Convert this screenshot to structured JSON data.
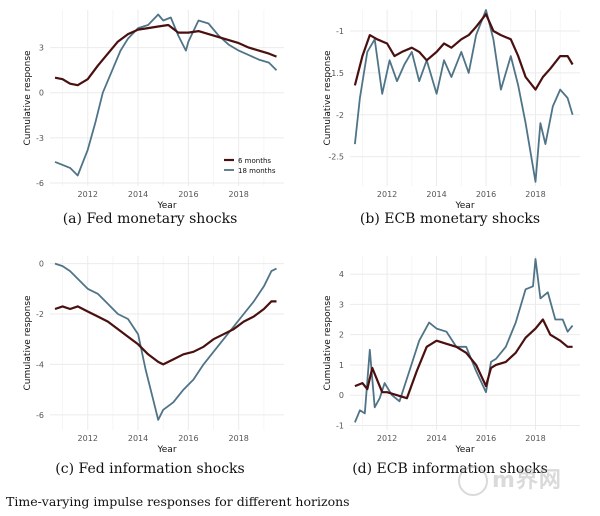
{
  "figure_caption": "Time-varying impulse responses for different horizons",
  "watermark": "m界网",
  "colors": {
    "six_months": "#4a1010",
    "eighteen_months": "#4f7488",
    "grid": "#ebebeb"
  },
  "legend": {
    "six": "6 months",
    "eighteen": "18 months"
  },
  "chart_data": [
    {
      "id": "fed-monetary",
      "type": "line",
      "caption": "(a) Fed monetary shocks",
      "xlabel": "Year",
      "ylabel": "Cumulative response",
      "xlim": [
        2010.5,
        2019.8
      ],
      "ylim": [
        -6.2,
        5.5
      ],
      "xticks": [
        2012,
        2014,
        2016,
        2018
      ],
      "yticks": [
        -6,
        -3,
        0,
        3
      ],
      "show_legend": true,
      "series": [
        {
          "name": "6 months",
          "x": [
            2010.7,
            2011.0,
            2011.3,
            2011.6,
            2012.0,
            2012.4,
            2012.8,
            2013.2,
            2013.6,
            2014.0,
            2014.4,
            2014.8,
            2015.2,
            2015.6,
            2016.0,
            2016.4,
            2016.8,
            2017.2,
            2017.6,
            2018.0,
            2018.4,
            2018.8,
            2019.2,
            2019.5
          ],
          "values": [
            1.0,
            0.9,
            0.6,
            0.5,
            0.9,
            1.8,
            2.6,
            3.4,
            3.9,
            4.2,
            4.3,
            4.4,
            4.5,
            4.0,
            4.0,
            4.1,
            3.9,
            3.7,
            3.5,
            3.3,
            3.0,
            2.8,
            2.6,
            2.4
          ]
        },
        {
          "name": "18 months",
          "x": [
            2010.7,
            2011.0,
            2011.3,
            2011.6,
            2012.0,
            2012.3,
            2012.6,
            2013.0,
            2013.3,
            2013.6,
            2014.0,
            2014.4,
            2014.8,
            2015.0,
            2015.3,
            2015.6,
            2015.9,
            2016.0,
            2016.4,
            2016.8,
            2017.2,
            2017.6,
            2018.0,
            2018.4,
            2018.8,
            2019.2,
            2019.5
          ],
          "values": [
            -4.6,
            -4.8,
            -5.0,
            -5.5,
            -3.8,
            -2.0,
            0.0,
            1.6,
            2.8,
            3.6,
            4.3,
            4.5,
            5.2,
            4.8,
            5.0,
            3.8,
            2.8,
            3.4,
            4.8,
            4.6,
            3.8,
            3.2,
            2.8,
            2.5,
            2.2,
            2.0,
            1.5
          ]
        }
      ]
    },
    {
      "id": "ecb-monetary",
      "type": "line",
      "caption": "(b) ECB monetary shocks",
      "xlabel": "Year",
      "ylabel": "Cumulative response",
      "xlim": [
        2010.5,
        2019.8
      ],
      "ylim": [
        -2.85,
        -0.75
      ],
      "xticks": [
        2012,
        2014,
        2016,
        2018
      ],
      "yticks": [
        -2.5,
        -2.0,
        -1.5,
        -1.0
      ],
      "show_legend": false,
      "series": [
        {
          "name": "6 months",
          "x": [
            2010.7,
            2011.0,
            2011.3,
            2011.6,
            2012.0,
            2012.3,
            2012.6,
            2013.0,
            2013.3,
            2013.6,
            2014.0,
            2014.3,
            2014.6,
            2015.0,
            2015.3,
            2015.6,
            2016.0,
            2016.3,
            2016.6,
            2017.0,
            2017.3,
            2017.6,
            2018.0,
            2018.3,
            2018.6,
            2019.0,
            2019.3,
            2019.5
          ],
          "values": [
            -1.65,
            -1.3,
            -1.05,
            -1.1,
            -1.15,
            -1.3,
            -1.25,
            -1.2,
            -1.25,
            -1.35,
            -1.25,
            -1.15,
            -1.2,
            -1.1,
            -1.05,
            -0.95,
            -0.8,
            -1.0,
            -1.05,
            -1.1,
            -1.3,
            -1.55,
            -1.7,
            -1.55,
            -1.45,
            -1.3,
            -1.3,
            -1.4
          ]
        },
        {
          "name": "18 months",
          "x": [
            2010.7,
            2010.9,
            2011.2,
            2011.5,
            2011.8,
            2012.1,
            2012.4,
            2012.7,
            2013.0,
            2013.3,
            2013.6,
            2014.0,
            2014.3,
            2014.6,
            2015.0,
            2015.3,
            2015.6,
            2016.0,
            2016.3,
            2016.6,
            2017.0,
            2017.3,
            2017.6,
            2018.0,
            2018.2,
            2018.4,
            2018.7,
            2019.0,
            2019.3,
            2019.5
          ],
          "values": [
            -2.35,
            -1.8,
            -1.25,
            -1.1,
            -1.75,
            -1.35,
            -1.6,
            -1.4,
            -1.25,
            -1.6,
            -1.35,
            -1.75,
            -1.35,
            -1.55,
            -1.25,
            -1.5,
            -1.05,
            -0.75,
            -1.1,
            -1.7,
            -1.3,
            -1.65,
            -2.1,
            -2.8,
            -2.1,
            -2.35,
            -1.9,
            -1.7,
            -1.8,
            -2.0
          ]
        }
      ]
    },
    {
      "id": "fed-information",
      "type": "line",
      "caption": "(c) Fed information shocks",
      "xlabel": "Year",
      "ylabel": "Cumulative response",
      "xlim": [
        2010.5,
        2019.8
      ],
      "ylim": [
        -6.6,
        0.3
      ],
      "xticks": [
        2012,
        2014,
        2016,
        2018
      ],
      "yticks": [
        -6,
        -4,
        -2,
        0
      ],
      "show_legend": false,
      "series": [
        {
          "name": "6 months",
          "x": [
            2010.7,
            2011.0,
            2011.3,
            2011.6,
            2012.0,
            2012.4,
            2012.8,
            2013.2,
            2013.6,
            2014.0,
            2014.4,
            2014.8,
            2015.0,
            2015.4,
            2015.8,
            2016.2,
            2016.6,
            2017.0,
            2017.4,
            2017.8,
            2018.2,
            2018.6,
            2019.0,
            2019.3,
            2019.5
          ],
          "values": [
            -1.8,
            -1.7,
            -1.8,
            -1.7,
            -1.9,
            -2.1,
            -2.3,
            -2.6,
            -2.9,
            -3.2,
            -3.6,
            -3.9,
            -4.0,
            -3.8,
            -3.6,
            -3.5,
            -3.3,
            -3.0,
            -2.8,
            -2.6,
            -2.3,
            -2.1,
            -1.8,
            -1.5,
            -1.5
          ]
        },
        {
          "name": "18 months",
          "x": [
            2010.7,
            2011.0,
            2011.3,
            2011.6,
            2012.0,
            2012.4,
            2012.8,
            2013.2,
            2013.6,
            2014.0,
            2014.3,
            2014.6,
            2014.8,
            2015.0,
            2015.4,
            2015.8,
            2016.2,
            2016.6,
            2017.0,
            2017.4,
            2017.8,
            2018.2,
            2018.6,
            2019.0,
            2019.3,
            2019.5
          ],
          "values": [
            0.0,
            -0.1,
            -0.3,
            -0.6,
            -1.0,
            -1.2,
            -1.6,
            -2.0,
            -2.2,
            -2.8,
            -4.2,
            -5.4,
            -6.2,
            -5.8,
            -5.5,
            -5.0,
            -4.6,
            -4.0,
            -3.5,
            -3.0,
            -2.5,
            -2.0,
            -1.5,
            -0.9,
            -0.3,
            -0.2
          ]
        }
      ]
    },
    {
      "id": "ecb-information",
      "type": "line",
      "caption": "(d) ECB information shocks",
      "xlabel": "Year",
      "ylabel": "Cumulative response",
      "xlim": [
        2010.5,
        2019.8
      ],
      "ylim": [
        -1.15,
        4.6
      ],
      "xticks": [
        2012,
        2014,
        2016,
        2018
      ],
      "yticks": [
        -1,
        0,
        1,
        2,
        3,
        4
      ],
      "show_legend": false,
      "series": [
        {
          "name": "6 months",
          "x": [
            2010.7,
            2011.0,
            2011.2,
            2011.4,
            2011.6,
            2011.8,
            2012.0,
            2012.4,
            2012.8,
            2013.2,
            2013.6,
            2014.0,
            2014.4,
            2014.8,
            2015.2,
            2015.6,
            2016.0,
            2016.2,
            2016.4,
            2016.8,
            2017.2,
            2017.6,
            2018.0,
            2018.3,
            2018.6,
            2019.0,
            2019.3,
            2019.5
          ],
          "values": [
            0.3,
            0.4,
            0.2,
            0.9,
            0.5,
            0.1,
            0.1,
            0.0,
            -0.1,
            0.8,
            1.6,
            1.8,
            1.7,
            1.6,
            1.4,
            1.0,
            0.3,
            0.9,
            1.0,
            1.1,
            1.4,
            1.9,
            2.2,
            2.5,
            2.0,
            1.8,
            1.6,
            1.6
          ]
        },
        {
          "name": "18 months",
          "x": [
            2010.7,
            2010.9,
            2011.1,
            2011.3,
            2011.5,
            2011.7,
            2011.9,
            2012.2,
            2012.5,
            2012.9,
            2013.3,
            2013.7,
            2014.0,
            2014.4,
            2014.8,
            2015.2,
            2015.6,
            2016.0,
            2016.2,
            2016.4,
            2016.8,
            2017.2,
            2017.6,
            2017.9,
            2018.0,
            2018.2,
            2018.5,
            2018.8,
            2019.1,
            2019.3,
            2019.5
          ],
          "values": [
            -0.9,
            -0.5,
            -0.6,
            1.5,
            -0.4,
            -0.1,
            0.4,
            0.0,
            -0.2,
            0.8,
            1.8,
            2.4,
            2.2,
            2.1,
            1.6,
            1.6,
            0.8,
            0.1,
            1.1,
            1.2,
            1.6,
            2.4,
            3.5,
            3.6,
            4.5,
            3.2,
            3.4,
            2.5,
            2.5,
            2.1,
            2.3
          ]
        }
      ]
    }
  ]
}
